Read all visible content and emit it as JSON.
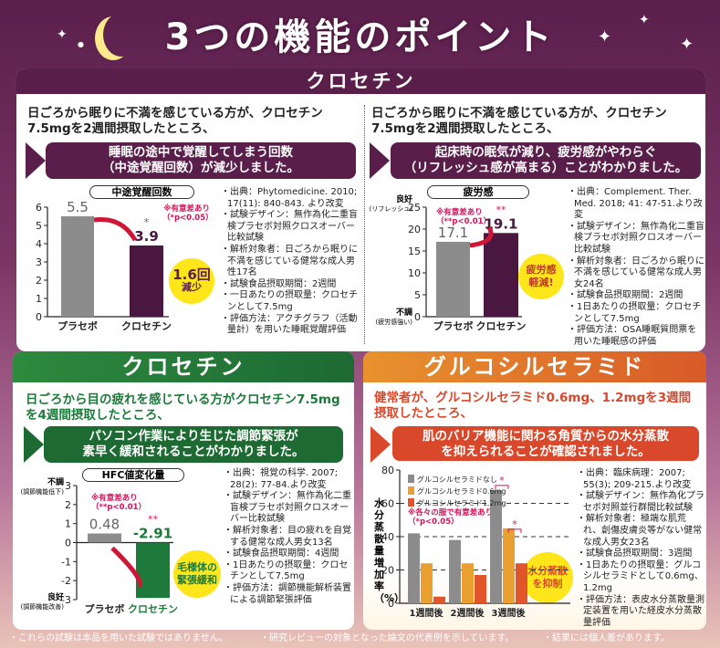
{
  "title": "3つの機能のポイント",
  "colors": {
    "purple": "#5a1e4a",
    "green": "#1d7a3a",
    "orange": "#e06a2a",
    "red": "#d0145a",
    "gray": "#8c8c8c",
    "yellow": "#ffe61a"
  },
  "panel_sleep": {
    "header": "クロセチン",
    "left": {
      "intro": "日ごろから眠りに不満を感じている方が、クロセチン7.5mgを2週間摂取したところ、",
      "result": [
        "睡眠の途中で覚醒してしまう回数",
        "（中途覚醒回数）が減少しました。"
      ],
      "chart_title": "中途覚醒回数",
      "sig": [
        "※有意差あり",
        "（*p<0.05）"
      ],
      "star": "*",
      "callout": [
        "1.6回",
        "減少"
      ],
      "notes": [
        "出典：Phytomedicine. 2010; 17(11): 840-843. より改変",
        "試験デザイン：無作為化二重盲検プラセボ対照クロスオーバー比較試験",
        "解析対象者：日ごろから眠りに不満を感じている健常な成人男性17名",
        "試験食品摂取期間：2週間",
        "一日あたりの摂取量：クロセチンとして7.5mg",
        "評価方法：アクチグラフ（活動量計）を用いた睡眠覚醒評価"
      ]
    },
    "right": {
      "intro": "日ごろから眠りに不満を感じている方が、クロセチン7.5mgを2週間摂取したところ、",
      "result": [
        "起床時の眠気が減り、疲労感がやわらぐ",
        "（リフレッシュ感が高まる）ことがわかりました。"
      ],
      "chart_title": "疲労感",
      "sig": [
        "※有意差あり",
        "（**p<0.01）"
      ],
      "star": "**",
      "y_top": "良好",
      "y_top_sub": "(リフレッシュ)",
      "y_bottom": "不調",
      "y_bottom_sub": "(疲労感強い)",
      "callout": [
        "疲労感",
        "軽減!"
      ],
      "notes": [
        "出典：Complement. Ther. Med. 2018; 41: 47-51.より改変",
        "試験デザイン：無作為化二重盲検プラセボ対照クロスオーバー比較試験",
        "解析対象者：日ごろから眠りに不満を感じている健常な成人男女24名",
        "試験食品摂取期間：2週間",
        "1日あたりの摂取量：クロセチンとして7.5mg",
        "評価方法：OSA睡眠質問票を用いた睡眠感の評価"
      ]
    }
  },
  "panel_eye": {
    "header": "クロセチン",
    "intro": "日ごろから目の疲れを感じている方がクロセチン7.5mgを4週間摂取したところ、",
    "result": [
      "パソコン作業により生じた調節緊張が",
      "素早く緩和されることがわかりました。"
    ],
    "chart_title": "HFC値変化量",
    "sig": [
      "※有意差あり",
      "（**p<0.01）"
    ],
    "star": "**",
    "y_top": "不調",
    "y_top_sub": "(調節機能低下)",
    "y_bottom": "良好",
    "y_bottom_sub": "(調節機能改善)",
    "callout": [
      "毛様体の",
      "緊張緩和"
    ],
    "notes": [
      "出典：視覚の科学. 2007; 28(2): 77-84.より改変",
      "試験デザイン：無作為化二重盲検プラセボ対照クロスオーバー比較試験",
      "解析対象者：目の疲れを自覚する健常な成人男女13名",
      "試験食品摂取期間：4週間",
      "1日あたりの摂取量：クロセチンとして7.5mg",
      "評価方法：調節機能解析装置による調節緊張評価"
    ]
  },
  "panel_skin": {
    "header": "グルコシルセラミド",
    "intro": "健常者が、グルコシルセラミド0.6mg、1.2mgを3週間摂取したところ、",
    "result": [
      "肌のバリア機能に関わる角質からの水分蒸散",
      "を抑えられることが確認されました。"
    ],
    "sig": [
      "※各々の服で有意差あり",
      "（*p<0.05）"
    ],
    "star": "*",
    "callout": [
      "水分蒸散",
      "を抑制"
    ],
    "notes": [
      "出典：臨床病理：2007; 55(3); 209-215.より改変",
      "試験デザイン：無作為化プラセボ対照並行群間比較試験",
      "解析対象者：極端な肌荒れ、創傷皮膚炎等がない健常な成人男女23名",
      "試験食品摂取期間：3週間",
      "1日あたりの摂取量：グルコシルセラミドとして0.6mg、1.2mg",
      "評価方法：表皮水分蒸散量測定装置を用いた経皮水分蒸散量評価"
    ]
  },
  "footer": [
    "・これらの試験は本品を用いた試験ではありません。",
    "・研究レビューの対象となった論文の代表例を示しています。",
    "・結果には個人差があります。"
  ],
  "chart_data": [
    {
      "type": "bar",
      "title": "中途覚醒回数",
      "categories": [
        "プラセボ",
        "クロセチン"
      ],
      "values": [
        5.5,
        3.9
      ],
      "labels": [
        "5.5",
        "3.9"
      ],
      "ylim": [
        0,
        6
      ],
      "yticks": [
        0,
        1,
        2,
        3,
        4,
        5,
        6
      ],
      "colors": [
        "#8c8c8c",
        "#4a1740"
      ]
    },
    {
      "type": "bar",
      "title": "疲労感",
      "categories": [
        "プラセボ",
        "クロセチン"
      ],
      "values": [
        17.1,
        19.1
      ],
      "labels": [
        "17.1",
        "19.1"
      ],
      "ylim": [
        0,
        25
      ],
      "yticks": [
        0,
        5,
        10,
        15,
        20,
        25
      ],
      "colors": [
        "#8c8c8c",
        "#4a1740"
      ]
    },
    {
      "type": "bar",
      "title": "HFC値変化量",
      "categories": [
        "プラセボ",
        "クロセチン"
      ],
      "values": [
        0.48,
        -2.91
      ],
      "labels": [
        "0.48",
        "-2.91"
      ],
      "ylim": [
        -3,
        3
      ],
      "yticks": [
        -3,
        -2,
        -1,
        0,
        1,
        2,
        3
      ],
      "colors": [
        "#8c8c8c",
        "#1d7a3a"
      ]
    },
    {
      "type": "bar",
      "title": "",
      "ylabel": "水分蒸散量増加率（%）",
      "categories": [
        "1週間後",
        "2週間後",
        "3週間後"
      ],
      "series": [
        {
          "name": "グルコシルセラミドなし",
          "values": [
            42,
            38,
            68
          ],
          "color": "#8c8c8c"
        },
        {
          "name": "グルコシルセラミド0.6mg",
          "values": [
            24,
            24,
            45
          ],
          "color": "#eaa030"
        },
        {
          "name": "グルコシルセラミド1.2mg",
          "values": [
            4,
            17,
            24
          ],
          "color": "#e0552a"
        }
      ],
      "ylim": [
        0,
        80
      ],
      "yticks": [
        0,
        20,
        40,
        60,
        80
      ],
      "grid": [
        20,
        40,
        60
      ],
      "legend": "top-left"
    }
  ]
}
